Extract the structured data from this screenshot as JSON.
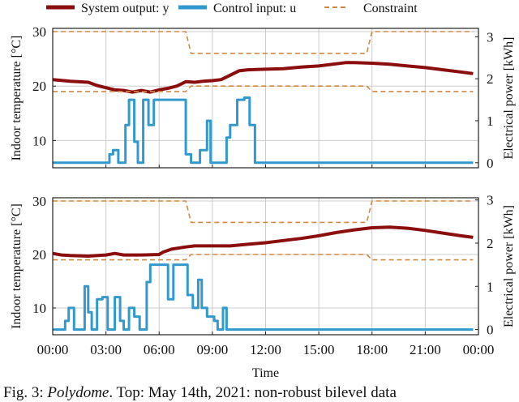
{
  "legend": [
    {
      "label": "System output: y",
      "color": "#8b0e0e",
      "style": "solid"
    },
    {
      "label": "Control input: u",
      "color": "#3399cc",
      "style": "solid"
    },
    {
      "label": "Constraint",
      "color": "#d08a40",
      "style": "dashed"
    }
  ],
  "caption": {
    "prefix": "Fig. 3: ",
    "italic": "Polydome",
    "rest": ". Top: May 14th, 2021: non-robust bilevel data"
  },
  "chart_data": [
    {
      "type": "line",
      "panel": "top",
      "xlabel": "",
      "ylabel": "Indoor temperature [°C]",
      "ylabel_right": "Electrical power [kWh]",
      "xlim": [
        0,
        24
      ],
      "ylim": [
        5,
        30.6
      ],
      "ylim_right": [
        -0.12,
        3.2
      ],
      "yticks": [
        10,
        20,
        30
      ],
      "yticks_right": [
        0,
        1,
        2,
        3
      ],
      "xticks": [
        0,
        3,
        6,
        9,
        12,
        15,
        18,
        21,
        24
      ],
      "grid": true,
      "series": [
        {
          "name": "System output: y",
          "axis": "left",
          "x": [
            0,
            1,
            2,
            2.5,
            3,
            3.5,
            4,
            4.5,
            5,
            5.5,
            6,
            6.5,
            7,
            7.5,
            8,
            8.5,
            9,
            9.5,
            10,
            10.5,
            11,
            12,
            13,
            14,
            15,
            16,
            16.5,
            17,
            18,
            19,
            20,
            21,
            22,
            23,
            23.7
          ],
          "y": [
            21.2,
            20.9,
            20.7,
            20.1,
            19.7,
            19.3,
            19.2,
            18.9,
            19.2,
            18.9,
            19.3,
            19.6,
            20.0,
            20.8,
            20.7,
            20.9,
            21.0,
            21.2,
            22.0,
            22.8,
            23.0,
            23.1,
            23.2,
            23.5,
            23.7,
            24.1,
            24.3,
            24.3,
            24.2,
            24.0,
            23.7,
            23.4,
            23.0,
            22.6,
            22.3
          ]
        },
        {
          "name": "Control input: u",
          "axis": "right",
          "step": true,
          "x": [
            0,
            3.2,
            3.4,
            3.7,
            4.1,
            4.3,
            4.6,
            4.8,
            5.1,
            5.4,
            5.7,
            7.5,
            7.8,
            8.3,
            8.7,
            8.9,
            9.8,
            10.0,
            10.4,
            10.8,
            11.1,
            11.4,
            23.7
          ],
          "y": [
            0,
            0.2,
            0.3,
            0,
            0.9,
            1.5,
            0.5,
            0,
            1.5,
            0.9,
            1.5,
            0.2,
            0,
            0.3,
            1.0,
            0,
            0.6,
            0.9,
            1.5,
            1.55,
            0.9,
            0,
            0
          ]
        },
        {
          "name": "Constraint upper",
          "axis": "left",
          "x": [
            0,
            7.5,
            7.8,
            17.7,
            18.0,
            23.7
          ],
          "y": [
            30,
            30,
            26,
            26,
            30,
            30
          ]
        },
        {
          "name": "Constraint lower",
          "axis": "left",
          "x": [
            0,
            7.5,
            7.8,
            17.7,
            18.0,
            23.7
          ],
          "y": [
            19,
            19,
            20,
            20,
            19,
            19
          ]
        }
      ]
    },
    {
      "type": "line",
      "panel": "bottom",
      "xlabel": "Time",
      "ylabel": "Indoor temperature [°C]",
      "ylabel_right": "Electrical power [kWh]",
      "xlim": [
        0,
        24
      ],
      "ylim": [
        5,
        30.6
      ],
      "ylim_right": [
        -0.12,
        3.05
      ],
      "yticks": [
        10,
        20,
        30
      ],
      "yticks_right": [
        0,
        1,
        2,
        3
      ],
      "xticks": [
        0,
        3,
        6,
        9,
        12,
        15,
        18,
        21,
        24
      ],
      "xticklabels": [
        "00:00",
        "03:00",
        "06:00",
        "09:00",
        "12:00",
        "15:00",
        "18:00",
        "21:00",
        "00:00"
      ],
      "grid": true,
      "series": [
        {
          "name": "System output: y",
          "axis": "left",
          "x": [
            0,
            0.5,
            1,
            2,
            3,
            3.5,
            4,
            5,
            6,
            6.2,
            6.7,
            7.5,
            8,
            9,
            10,
            11,
            12,
            13,
            14,
            15,
            16,
            17,
            18,
            19,
            20,
            21,
            22,
            23,
            23.7
          ],
          "y": [
            20.2,
            19.9,
            19.8,
            19.7,
            19.9,
            20.2,
            19.9,
            19.9,
            20.0,
            20.4,
            21.0,
            21.4,
            21.6,
            21.6,
            21.6,
            21.9,
            22.2,
            22.6,
            23.0,
            23.5,
            24.1,
            24.6,
            25.0,
            25.1,
            24.9,
            24.5,
            24.0,
            23.5,
            23.2
          ]
        },
        {
          "name": "Control input: u",
          "axis": "right",
          "step": true,
          "x": [
            0,
            0.7,
            0.9,
            1.2,
            1.8,
            2.0,
            2.2,
            2.5,
            2.8,
            3.1,
            3.5,
            3.8,
            4.0,
            4.3,
            4.6,
            4.9,
            5.3,
            5.5,
            6.5,
            6.8,
            7.6,
            7.9,
            8.2,
            8.4,
            8.7,
            9.1,
            9.3,
            9.6,
            9.8,
            23.7
          ],
          "y": [
            0,
            0.2,
            0.5,
            0,
            1.0,
            0.4,
            0,
            0.7,
            0.75,
            0,
            0.75,
            0.2,
            0,
            0.5,
            0.3,
            0,
            1.1,
            1.5,
            0.7,
            1.5,
            0.8,
            0.5,
            1.15,
            0.5,
            0.3,
            0.2,
            0,
            0.5,
            0,
            0
          ]
        },
        {
          "name": "Constraint upper",
          "axis": "left",
          "x": [
            0,
            7.5,
            7.8,
            17.7,
            18.0,
            23.7
          ],
          "y": [
            30,
            30,
            26,
            26,
            30,
            30
          ]
        },
        {
          "name": "Constraint lower",
          "axis": "left",
          "x": [
            0,
            7.5,
            7.8,
            17.7,
            18.0,
            23.7
          ],
          "y": [
            19,
            19,
            20,
            20,
            19,
            19
          ]
        }
      ]
    }
  ]
}
